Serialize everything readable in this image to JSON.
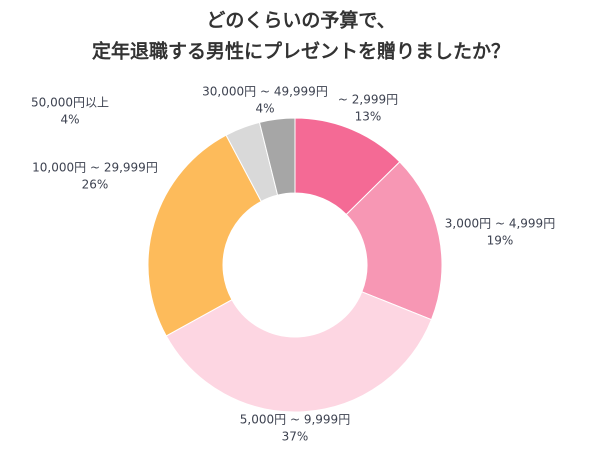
{
  "chart_data": {
    "type": "donut",
    "title": [
      "どのくらいの予算で、",
      "定年退職する男性にプレゼントを贈りましたか？"
    ],
    "categories": [
      "~ 2,999円",
      "3,000円 ~ 4,999円",
      "5,000円 ~ 9,999円",
      "10,000円 ~ 29,999円",
      "30,000円 ~ 49,999円",
      "50,000円以上"
    ],
    "values": [
      13,
      19,
      37,
      26,
      4,
      4
    ],
    "value_labels": [
      "13%",
      "19%",
      "37%",
      "26%",
      "4%",
      "4%"
    ],
    "colors": [
      "#f46a95",
      "#f797b4",
      "#fdd6e2",
      "#fdbb5b",
      "#d9d9d9",
      "#a6a6a6"
    ]
  }
}
